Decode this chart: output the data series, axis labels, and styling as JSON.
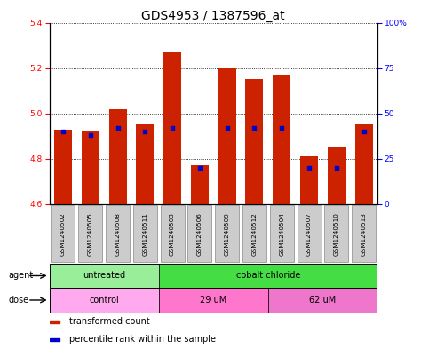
{
  "title": "GDS4953 / 1387596_at",
  "samples": [
    "GSM1240502",
    "GSM1240505",
    "GSM1240508",
    "GSM1240511",
    "GSM1240503",
    "GSM1240506",
    "GSM1240509",
    "GSM1240512",
    "GSM1240504",
    "GSM1240507",
    "GSM1240510",
    "GSM1240513"
  ],
  "bar_values": [
    4.93,
    4.92,
    5.02,
    4.95,
    5.27,
    4.77,
    5.2,
    5.15,
    5.17,
    4.81,
    4.85,
    4.95
  ],
  "percentile_values": [
    40,
    38,
    42,
    40,
    42,
    20,
    42,
    42,
    42,
    20,
    20,
    40
  ],
  "bar_base": 4.6,
  "ylim_left": [
    4.6,
    5.4
  ],
  "ylim_right": [
    0,
    100
  ],
  "yticks_left": [
    4.6,
    4.8,
    5.0,
    5.2,
    5.4
  ],
  "yticks_right": [
    0,
    25,
    50,
    75,
    100
  ],
  "ytick_labels_right": [
    "0",
    "25",
    "50",
    "75",
    "100%"
  ],
  "bar_color": "#cc2200",
  "percentile_color": "#0000cc",
  "agent_groups": [
    {
      "label": "untreated",
      "start": 0,
      "end": 4,
      "color": "#99ee99"
    },
    {
      "label": "cobalt chloride",
      "start": 4,
      "end": 12,
      "color": "#44dd44"
    }
  ],
  "dose_groups": [
    {
      "label": "control",
      "start": 0,
      "end": 4,
      "color": "#ffaaee"
    },
    {
      "label": "29 uM",
      "start": 4,
      "end": 8,
      "color": "#ff88cc"
    },
    {
      "label": "62 uM",
      "start": 8,
      "end": 12,
      "color": "#ee88cc"
    }
  ],
  "legend_items": [
    {
      "label": "transformed count",
      "color": "#cc2200"
    },
    {
      "label": "percentile rank within the sample",
      "color": "#0000cc"
    }
  ],
  "agent_label": "agent",
  "dose_label": "dose",
  "sample_box_color": "#cccccc",
  "title_fontsize": 10,
  "tick_fontsize": 6.5,
  "label_fontsize": 7,
  "legend_fontsize": 7
}
